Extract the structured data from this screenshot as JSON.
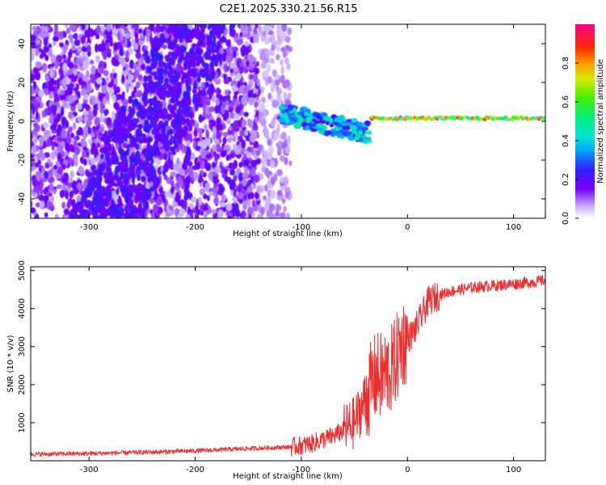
{
  "figure_title": "C2E1.2025.330.21.56.R15",
  "chart_data": [
    {
      "type": "heatmap",
      "xlabel": "Height of straight line (km)",
      "ylabel": "Frequency (Hz)",
      "xlim": [
        -355,
        130
      ],
      "ylim": [
        -50,
        50
      ],
      "xticks": [
        -300,
        -200,
        -100,
        0,
        100
      ],
      "yticks": [
        -40,
        -20,
        0,
        20,
        40
      ],
      "colorbar": {
        "label": "Normalized spectral amplitude",
        "range": [
          0,
          1
        ],
        "ticks": [
          "0.0",
          "0.2",
          "0.4",
          "0.6",
          "0.8"
        ],
        "colormap": "rainbow"
      },
      "regions": [
        {
          "name": "diffuse noise",
          "x_range": [
            -355,
            -110
          ],
          "y_range": [
            -50,
            50
          ],
          "amplitude_range": [
            0.05,
            0.2
          ]
        },
        {
          "name": "diagonal noise band",
          "x_range": [
            -300,
            -170
          ],
          "y_range": [
            -50,
            50
          ],
          "amplitude_range": [
            0.15,
            0.25
          ]
        },
        {
          "name": "scattered signal",
          "x_range": [
            -120,
            -35
          ],
          "y_range": [
            -12,
            8
          ],
          "amplitude_range": [
            0.2,
            0.5
          ]
        },
        {
          "name": "carrier line",
          "x_range": [
            -35,
            130
          ],
          "y_range": [
            -1,
            4
          ],
          "amplitude_range": [
            0.4,
            0.95
          ]
        }
      ],
      "grid": false
    },
    {
      "type": "line",
      "xlabel": "Height of straight line (km)",
      "ylabel": "SNR (10 * v/v)",
      "xlim": [
        -355,
        130
      ],
      "ylim": [
        0,
        5100
      ],
      "xticks": [
        -300,
        -200,
        -100,
        0,
        100
      ],
      "yticks": [
        1000,
        2000,
        3000,
        4000,
        5000
      ],
      "grid": false,
      "series": [
        {
          "color": "#ee2e2e",
          "x": [
            -355,
            -300,
            -250,
            -200,
            -150,
            -110,
            -100,
            -90,
            -80,
            -70,
            -60,
            -50,
            -40,
            -35,
            -30,
            -25,
            -20,
            -15,
            -10,
            -5,
            0,
            5,
            10,
            20,
            30,
            40,
            60,
            80,
            100,
            120,
            130
          ],
          "y": [
            170,
            190,
            220,
            260,
            320,
            360,
            400,
            450,
            550,
            650,
            800,
            1000,
            1600,
            1900,
            2200,
            2200,
            2300,
            2400,
            2700,
            3100,
            3200,
            3350,
            3600,
            4200,
            4350,
            4450,
            4550,
            4600,
            4650,
            4700,
            4750
          ]
        }
      ]
    }
  ]
}
